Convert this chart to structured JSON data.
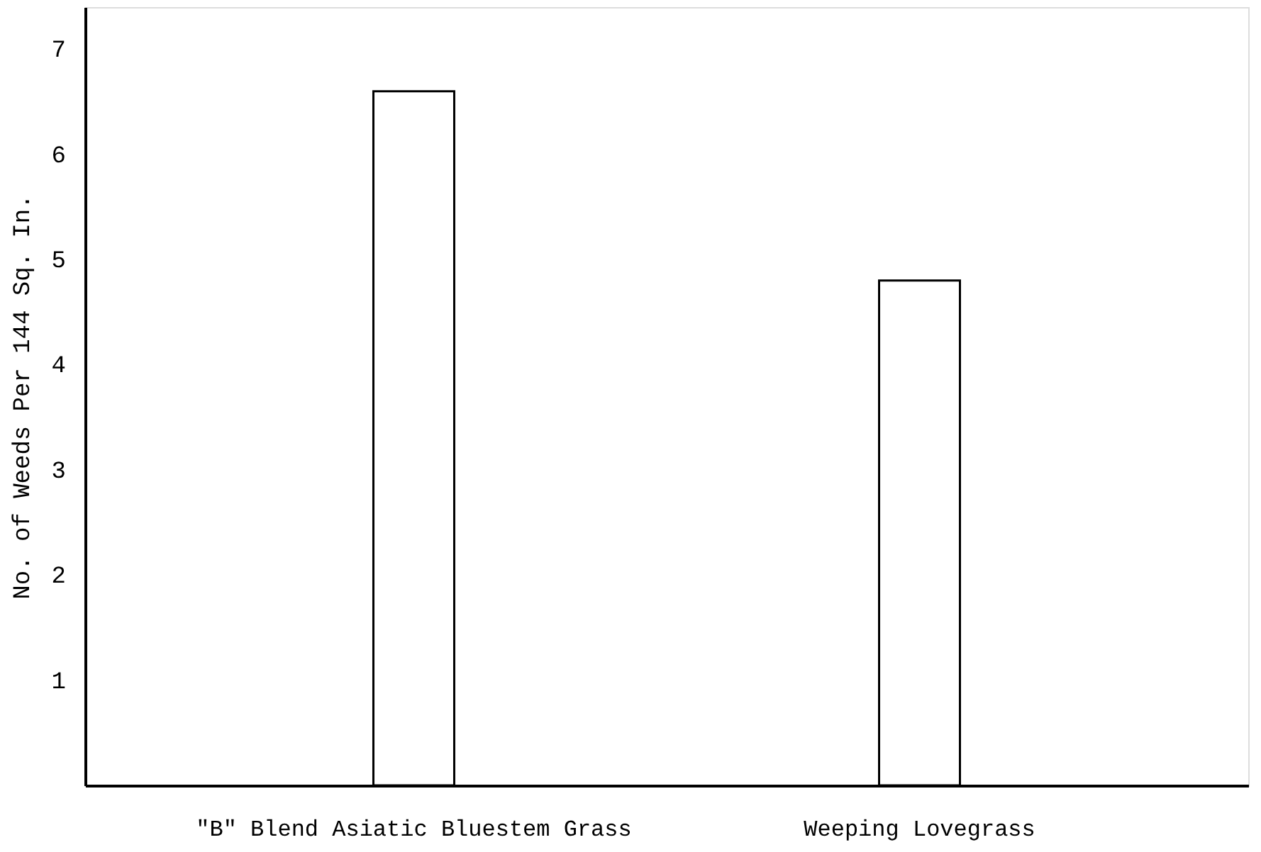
{
  "chart_data": {
    "type": "bar",
    "ylabel": "No. of Weeds Per 144 Sq. In.",
    "categories": [
      "\"B\" Blend Asiatic Bluestem Grass",
      "Weeping Lovegrass"
    ],
    "values": [
      6.6,
      4.8
    ],
    "color": "#ffffff",
    "ylim": [
      0,
      7.4
    ],
    "yticks": [
      1,
      2,
      3,
      4,
      5,
      6,
      7
    ],
    "grid": false
  }
}
